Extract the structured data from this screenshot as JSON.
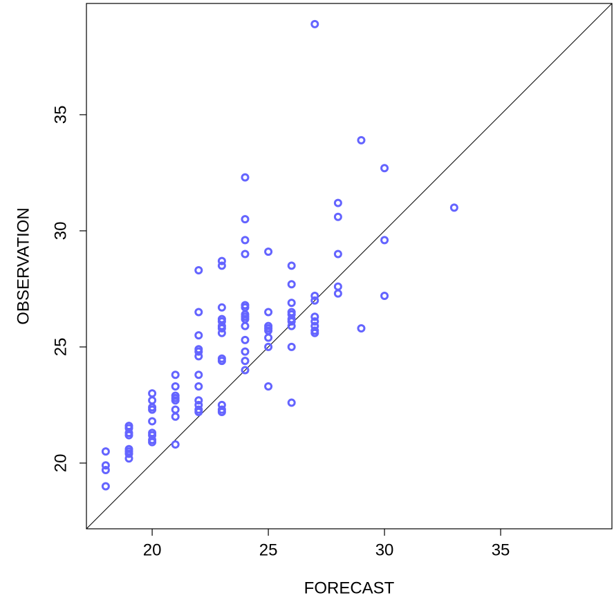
{
  "chart_data": {
    "type": "scatter",
    "x_label": "FORECAST",
    "y_label": "OBSERVATION",
    "xlim": [
      17.17,
      39.79
    ],
    "ylim": [
      17.17,
      39.79
    ],
    "xticks": [
      20,
      25,
      30,
      35
    ],
    "yticks": [
      20,
      25,
      30,
      35
    ],
    "diagonal": true,
    "series": [
      {
        "color": "#6464ff",
        "x": [
          18,
          18,
          18,
          18,
          19,
          19,
          19,
          19,
          19,
          19,
          19,
          19,
          20,
          20,
          20,
          20,
          20,
          20,
          20,
          20,
          20,
          21,
          21,
          21,
          21,
          21,
          21,
          21,
          21,
          22,
          22,
          22,
          22,
          22,
          22,
          22,
          22,
          22,
          22,
          22,
          22,
          23,
          23,
          23,
          23,
          23,
          23,
          23,
          23,
          23,
          23,
          23,
          23,
          23,
          24,
          24,
          24,
          24,
          24,
          24,
          24,
          24,
          24,
          24,
          24,
          24,
          24,
          24,
          25,
          25,
          25,
          25,
          25,
          25,
          25,
          25,
          26,
          26,
          26,
          26,
          26,
          26,
          26,
          26,
          26,
          26,
          27,
          27,
          27,
          27,
          27,
          27,
          27,
          27,
          28,
          28,
          28,
          28,
          28,
          29,
          29,
          30,
          30,
          30,
          33
        ],
        "values": [
          20.5,
          19.9,
          19.7,
          19.0,
          21.6,
          21.5,
          21.3,
          21.2,
          20.6,
          20.5,
          20.4,
          20.2,
          23.0,
          22.7,
          22.4,
          22.3,
          21.8,
          21.3,
          21.2,
          21.0,
          20.9,
          23.8,
          23.3,
          22.9,
          22.8,
          22.7,
          22.3,
          22.0,
          20.8,
          28.3,
          26.5,
          25.5,
          24.9,
          24.8,
          24.6,
          23.8,
          23.3,
          22.7,
          22.5,
          22.3,
          22.2,
          28.7,
          28.5,
          26.7,
          26.2,
          26.1,
          25.9,
          25.8,
          25.6,
          24.5,
          24.4,
          22.5,
          22.3,
          22.2,
          32.3,
          30.5,
          29.6,
          29.0,
          26.8,
          26.7,
          26.4,
          26.3,
          26.2,
          25.9,
          25.3,
          24.8,
          24.4,
          24.0,
          29.1,
          26.5,
          25.9,
          25.8,
          25.7,
          25.4,
          25.0,
          23.3,
          28.5,
          27.7,
          26.9,
          26.5,
          26.4,
          26.2,
          26.1,
          25.9,
          25.0,
          22.6,
          38.9,
          27.2,
          27.0,
          26.3,
          26.1,
          25.9,
          25.7,
          25.6,
          31.2,
          30.6,
          29.0,
          27.6,
          27.3,
          33.9,
          25.8,
          32.7,
          29.6,
          27.2,
          31.0
        ]
      }
    ]
  }
}
